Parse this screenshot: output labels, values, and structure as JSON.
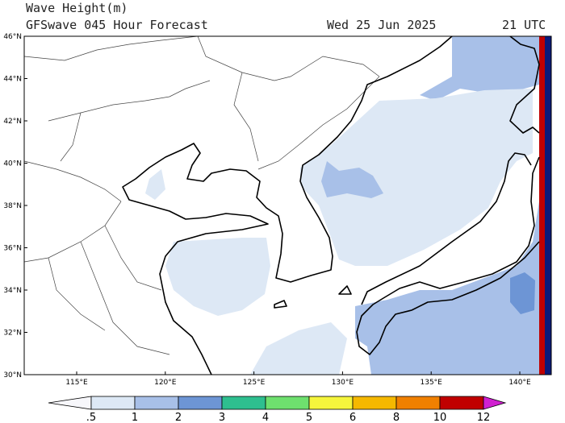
{
  "header": {
    "title": "Wave Height(m)",
    "subtitle": "GFSwave 045 Hour Forecast",
    "date": "Wed 25 Jun 2025",
    "time": "21 UTC"
  },
  "map": {
    "lat_labels": [
      "46°N",
      "44°N",
      "42°N",
      "40°N",
      "38°N",
      "36°N",
      "34°N",
      "32°N",
      "30°N"
    ],
    "lon_labels": [
      "115°E",
      "120°E",
      "125°E",
      "130°E",
      "135°E",
      "140°E"
    ]
  },
  "colorbar": {
    "labels": [
      ".5",
      "1",
      "2",
      "3",
      "4",
      "5",
      "6",
      "8",
      "10",
      "12"
    ]
  }
}
